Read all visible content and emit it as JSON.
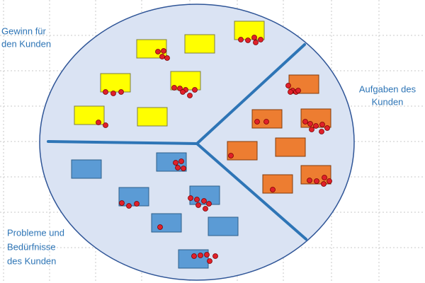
{
  "labels": {
    "gain": {
      "lines": [
        "Gewinn für",
        "den Kunden"
      ]
    },
    "jobs": {
      "lines": [
        "Aufgaben des",
        "Kunden"
      ]
    },
    "pains": {
      "lines": [
        "Probleme und",
        "Bedürfnisse",
        "des Kunden"
      ]
    }
  }
}
